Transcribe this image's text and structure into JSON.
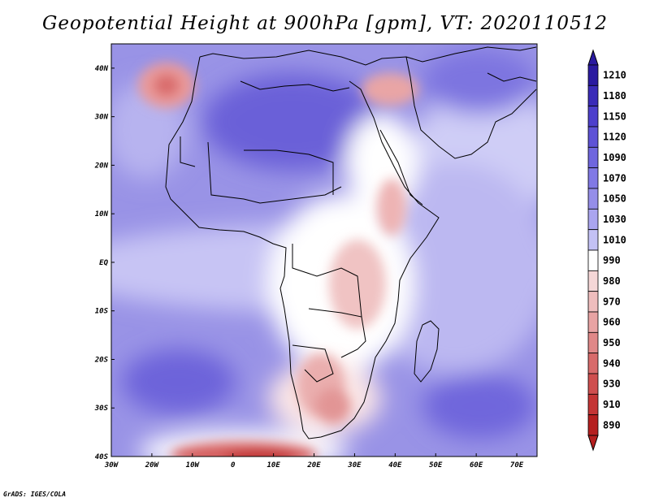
{
  "title": "Geopotential Height at 900hPa [gpm], VT: 2020110512",
  "footer": "GrADS: IGES/COLA",
  "map": {
    "lon_labels": [
      "30W",
      "20W",
      "10W",
      "0",
      "10E",
      "20E",
      "30E",
      "40E",
      "50E",
      "60E",
      "70E"
    ],
    "lat_labels": [
      "40N",
      "30N",
      "20N",
      "10N",
      "EQ",
      "10S",
      "20S",
      "30S",
      "40S"
    ],
    "lon_range": [
      -30,
      75
    ],
    "lat_range": [
      -40,
      45
    ]
  },
  "colorbar": {
    "levels": [
      "1210",
      "1180",
      "1150",
      "1120",
      "1090",
      "1070",
      "1050",
      "1030",
      "1010",
      "990",
      "980",
      "970",
      "960",
      "950",
      "940",
      "930",
      "910",
      "890"
    ],
    "colors": [
      "#2a1aa0",
      "#3a2bb8",
      "#4d3fcc",
      "#5e52d6",
      "#6f66de",
      "#8179e5",
      "#958ee9",
      "#aaa5ef",
      "#c3c1f5",
      "#ffffff",
      "#f5d7d7",
      "#efbdbd",
      "#e8a3a3",
      "#e08888",
      "#d86b6b",
      "#cf4f4f",
      "#c43535",
      "#b51f1f"
    ]
  }
}
